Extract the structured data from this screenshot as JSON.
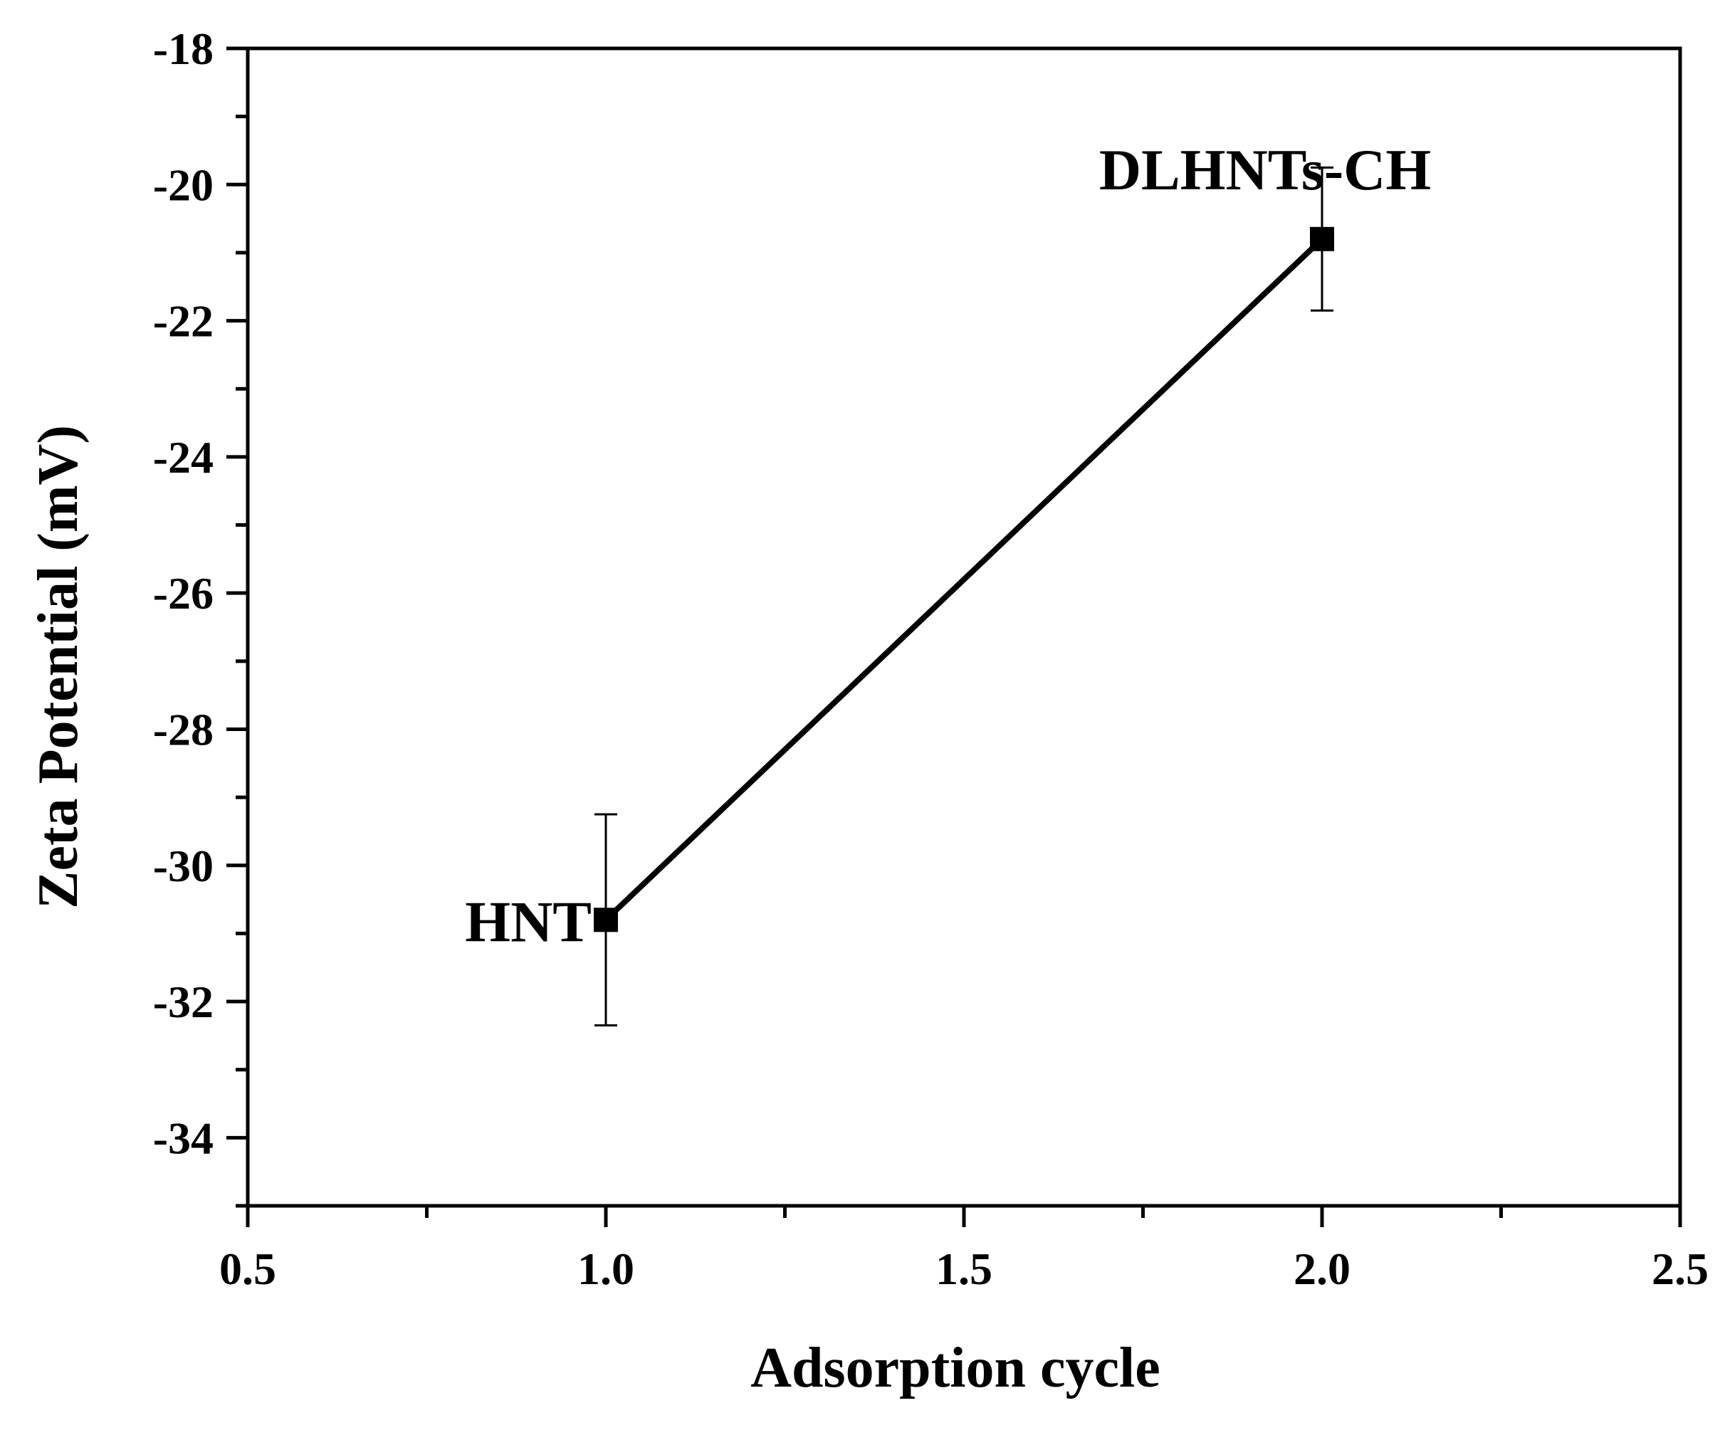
{
  "chart_data": {
    "type": "line",
    "title": "",
    "xlabel": "Adsorption cycle",
    "ylabel": "Zeta Potential (mV)",
    "xlim": [
      0.5,
      2.5
    ],
    "ylim": [
      -35,
      -18
    ],
    "x_ticks": [
      0.5,
      1.0,
      1.5,
      2.0,
      2.5
    ],
    "x_tick_labels": [
      "0.5",
      "1.0",
      "1.5",
      "2.0",
      "2.5"
    ],
    "y_ticks": [
      -34,
      -32,
      -30,
      -28,
      -26,
      -24,
      -22,
      -20,
      -18
    ],
    "y_tick_labels": [
      "-34",
      "-32",
      "-30",
      "-28",
      "-26",
      "-24",
      "-22",
      "-20",
      "-18"
    ],
    "grid": false,
    "legend": "none",
    "series": [
      {
        "color": "#000000",
        "marker": "square",
        "points": [
          {
            "x": 1.0,
            "y": -30.8,
            "error": 1.55,
            "label": "HNT"
          },
          {
            "x": 2.0,
            "y": -20.8,
            "error": 1.05,
            "label": "DLHNTs-CH"
          }
        ]
      }
    ]
  }
}
